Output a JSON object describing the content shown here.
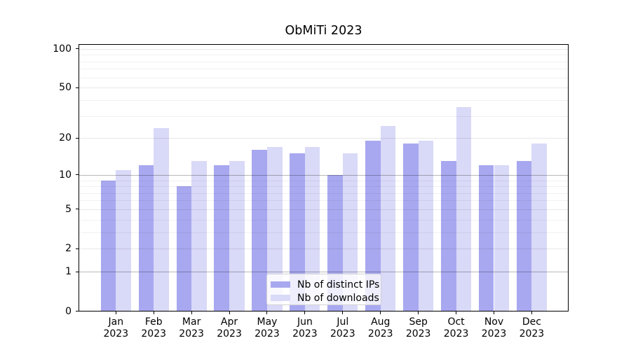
{
  "chart_data": {
    "type": "bar",
    "title": "ObMiTi 2023",
    "categories": [
      "Jan",
      "Feb",
      "Mar",
      "Apr",
      "May",
      "Jun",
      "Jul",
      "Aug",
      "Sep",
      "Oct",
      "Nov",
      "Dec"
    ],
    "x_tick_year": "2023",
    "series": [
      {
        "name": "Nb of distinct IPs",
        "color": "#a8a8f0",
        "values": [
          9,
          12,
          8,
          12,
          16,
          15,
          10,
          19,
          18,
          13,
          12,
          13
        ]
      },
      {
        "name": "Nb of downloads",
        "color": "#d9d9f8",
        "values": [
          11,
          24,
          13,
          13,
          17,
          17,
          15,
          25,
          19,
          35,
          12,
          18
        ]
      }
    ],
    "y_scale": "log1p",
    "y_ticks_major": [
      0,
      1,
      2,
      5,
      10,
      20,
      50,
      100
    ],
    "y_ticks_minor": [
      3,
      4,
      6,
      7,
      8,
      9,
      30,
      40,
      60,
      70,
      80,
      90
    ],
    "emphasized_gridlines": [
      1,
      10
    ],
    "ylim": [
      0,
      110
    ],
    "xlabel": "",
    "ylabel": "",
    "grid": true,
    "legend_position": "lower center",
    "frame_color": "#000000",
    "gridline_color_major": "rgba(0,0,0,0.09)",
    "gridline_color_minor": "rgba(0,0,0,0.055)",
    "gridline_color_emphasized": "rgba(0,0,0,0.28)"
  }
}
